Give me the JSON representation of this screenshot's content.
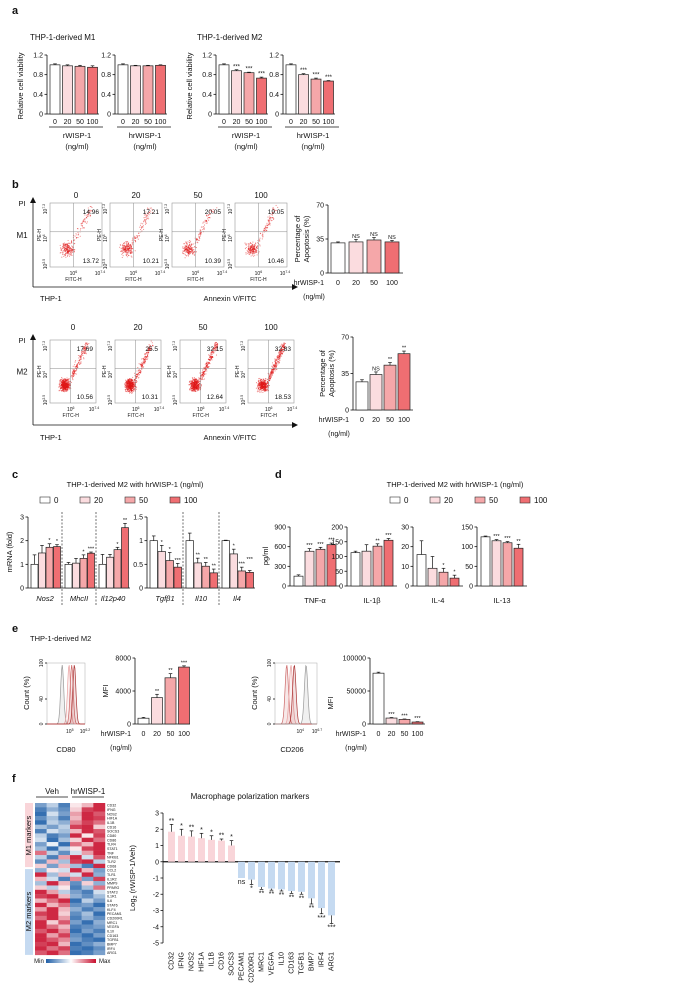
{
  "style": {
    "dose_colors": [
      "#ffffff",
      "#fbdcdf",
      "#f5a7a9",
      "#ef6e72"
    ],
    "m1_bar_color": "#f9d5d9",
    "m2_bar_color": "#c5daf1",
    "heat_low": "#1f5fa8",
    "heat_high": "#c8102e"
  },
  "panel_labels": {
    "a": "a",
    "b": "b",
    "c": "c",
    "d": "d",
    "e": "e",
    "f": "f"
  },
  "panel_a": {
    "title_m1": "THP-1-derived M1",
    "title_m2": "THP-1-derived M2",
    "ylabel": "Relative cell viability",
    "unit": "(ng/ml)"
  },
  "panel_b": {
    "pi_label": "PI",
    "rows": [
      "M1",
      "M2"
    ],
    "x_title_left": "THP-1",
    "x_title_center": "Annexin V/FITC",
    "doses": [
      "0",
      "20",
      "50",
      "100"
    ],
    "flow_axes": {
      "y_label": "PE-H",
      "x_label": "FITC-H",
      "y_ticks": [
        {
          "base": "10",
          "exp": "7.2"
        },
        {
          "base": "10",
          "exp": "4"
        },
        {
          "base": "10",
          "exp": "2.5"
        }
      ],
      "x_ticks": [
        {
          "base": "10",
          "exp": "6"
        },
        {
          "base": "10",
          "exp": "7.4"
        }
      ]
    },
    "m1_quadrants": [
      {
        "upper_right": "14.96",
        "lower_right": "13.72"
      },
      {
        "upper_right": "17.21",
        "lower_right": "10.21"
      },
      {
        "upper_right": "20.05",
        "lower_right": "10.39"
      },
      {
        "upper_right": "19.05",
        "lower_right": "10.46"
      }
    ],
    "m2_quadrants": [
      {
        "upper_right": "17.69",
        "lower_right": "10.56"
      },
      {
        "upper_right": "25.5",
        "lower_right": "10.31"
      },
      {
        "upper_right": "32.15",
        "lower_right": "12.64"
      },
      {
        "upper_right": "32.83",
        "lower_right": "18.53"
      }
    ],
    "bar_ylabel_line1": "Percentage of",
    "bar_ylabel_line2": "Apoptosis (%)",
    "unit": "(ng/ml)"
  },
  "panel_c": {
    "title": "THP-1-derived M2 with hrWISP-1 (ng/ml)",
    "legend": [
      "0",
      "20",
      "50",
      "100"
    ],
    "ylabel": "mRNA (fold)"
  },
  "panel_d": {
    "title": "THP-1-derived M2 with hrWISP-1 (ng/ml)",
    "legend": [
      "0",
      "20",
      "50",
      "100"
    ],
    "ylabel": "pg/ml"
  },
  "panel_e": {
    "title": "THP-1-derived M2",
    "hist_ylabel": "Count (%)",
    "hist_yticks": [
      "100",
      "40",
      "0"
    ],
    "cd80": {
      "label": "CD80",
      "x_ticks": [
        {
          "base": "10",
          "exp": "5"
        },
        {
          "base": "10",
          "exp": "6.2"
        }
      ]
    },
    "cd206": {
      "label": "CD206",
      "x_ticks": [
        {
          "base": "10",
          "exp": "4"
        },
        {
          "base": "10",
          "exp": "6.7"
        }
      ]
    },
    "mfi_ylabel": "MFI",
    "unit": "(ng/ml)"
  },
  "panel_f": {
    "heatmap": {
      "group_veh": "Veh",
      "group_wisp": "hrWISP-1",
      "m1_label": "M1 markers",
      "m2_label": "M2 markers",
      "min_label": "Min",
      "max_label": "Max",
      "m1_rows": 15,
      "genes": [
        "CD32",
        "IFNG",
        "NOS2",
        "HIF1A",
        "IL1B",
        "CD16",
        "SOCS3",
        "CD80",
        "CD86",
        "TLR4",
        "STAT1",
        "TNF",
        "NFKB1",
        "TLR2",
        "CD68",
        "CCL2",
        "TLR1",
        "IL1R2",
        "MMP9",
        "PPARG",
        "STAT3",
        "IL1R1",
        "IL6",
        "STAT6",
        "KLF4",
        "PECAM1",
        "CD200R1",
        "MRC1",
        "VEGFA",
        "IL10",
        "CD163",
        "TGFB1",
        "BMP7",
        "IRF4",
        "ARG1"
      ],
      "values": [
        [
          -0.6,
          -0.3,
          -0.8,
          0.1,
          0.3,
          0.9
        ],
        [
          -0.8,
          -0.5,
          -0.7,
          0.2,
          0.8,
          0.9
        ],
        [
          -0.9,
          -0.2,
          -0.6,
          0.4,
          0.9,
          0.7
        ],
        [
          -0.7,
          -0.4,
          -0.8,
          0.3,
          0.9,
          0.8
        ],
        [
          -0.9,
          -0.3,
          -0.5,
          0.5,
          0.8,
          0.6
        ],
        [
          -0.4,
          -0.6,
          -0.3,
          0.8,
          0.9,
          0.2
        ],
        [
          -0.8,
          -0.2,
          -0.4,
          0.3,
          0.9,
          0.7
        ],
        [
          -0.3,
          -0.8,
          -0.6,
          0.9,
          0.1,
          0.8
        ],
        [
          -0.2,
          -0.9,
          -0.4,
          0.2,
          0.9,
          0.6
        ],
        [
          -0.6,
          -0.1,
          -0.9,
          0.6,
          0.3,
          0.9
        ],
        [
          -0.4,
          -0.9,
          -0.3,
          0.1,
          0.8,
          0.9
        ],
        [
          0.6,
          -0.3,
          -0.7,
          -0.2,
          0.4,
          0.9
        ],
        [
          -0.3,
          -0.8,
          0.4,
          0.9,
          -0.2,
          0.7
        ],
        [
          -0.7,
          0.3,
          -0.4,
          0.8,
          0.9,
          -0.3
        ],
        [
          0.2,
          -0.6,
          0.3,
          -0.4,
          -0.8,
          0.9
        ],
        [
          -0.5,
          0.1,
          -0.2,
          0.9,
          0.3,
          -0.6
        ],
        [
          0.9,
          -0.4,
          0.3,
          -0.2,
          0.9,
          -0.5
        ],
        [
          0.3,
          -0.2,
          -0.8,
          0.5,
          -0.6,
          0.8
        ],
        [
          -0.4,
          0.9,
          0.3,
          -0.7,
          0.2,
          -0.5
        ],
        [
          0.2,
          -0.3,
          0.1,
          -0.8,
          -0.4,
          0.6
        ],
        [
          0.9,
          0.4,
          -0.3,
          -0.6,
          -0.8,
          -0.2
        ],
        [
          0.8,
          0.9,
          0.3,
          -0.5,
          -0.7,
          -0.4
        ],
        [
          0.3,
          0.6,
          0.9,
          -0.9,
          -0.3,
          -0.6
        ],
        [
          0.9,
          0.3,
          0.6,
          -0.7,
          -0.6,
          -0.9
        ],
        [
          0.4,
          0.9,
          0.3,
          -0.5,
          -0.8,
          -0.6
        ],
        [
          0.8,
          0.9,
          0.2,
          -0.7,
          -0.4,
          -0.9
        ],
        [
          0.6,
          0.9,
          0.4,
          -0.8,
          -0.5,
          -0.7
        ],
        [
          0.9,
          0.2,
          0.7,
          -0.6,
          -0.9,
          -0.5
        ],
        [
          0.9,
          0.6,
          0.3,
          -0.8,
          -0.7,
          -0.6
        ],
        [
          0.7,
          0.9,
          0.5,
          -0.9,
          -0.6,
          -0.8
        ],
        [
          0.9,
          0.4,
          0.8,
          -0.7,
          -0.9,
          -0.6
        ],
        [
          0.9,
          0.7,
          0.5,
          -0.6,
          -0.8,
          -0.9
        ],
        [
          0.8,
          0.9,
          0.3,
          -0.9,
          -0.7,
          -0.5
        ],
        [
          0.9,
          0.6,
          0.8,
          -0.8,
          -0.9,
          -0.7
        ],
        [
          0.7,
          0.9,
          0.6,
          -0.9,
          -0.8,
          -0.6
        ]
      ]
    },
    "title": "Macrophage polarization markers",
    "ylabel_main": "Log",
    "ylabel_sub": "2",
    "ylabel_rest": " (rWISP-1/Veh)"
  },
  "chart_data": [
    {
      "type": "bar",
      "categories": [
        "0",
        "20",
        "50",
        "100"
      ],
      "values": [
        1.0,
        0.98,
        0.97,
        0.95
      ],
      "errors": [
        0.02,
        0.02,
        0.02,
        0.03
      ],
      "stars": [
        "",
        "",
        "",
        ""
      ],
      "ylim": [
        0,
        1.2
      ],
      "yticks": [
        "0",
        "0.4",
        "0.8",
        "1.2"
      ],
      "xlabel": "rWISP-1"
    },
    {
      "type": "bar",
      "categories": [
        "0",
        "20",
        "50",
        "100"
      ],
      "values": [
        1.0,
        0.98,
        0.98,
        0.99
      ],
      "errors": [
        0.02,
        0.01,
        0.01,
        0.01
      ],
      "stars": [
        "",
        "",
        "",
        ""
      ],
      "ylim": [
        0,
        1.2
      ],
      "yticks": [
        "0",
        "0.4",
        "0.8",
        "1.2"
      ],
      "xlabel": "hrWISP-1"
    },
    {
      "type": "bar",
      "categories": [
        "0",
        "20",
        "50",
        "100"
      ],
      "values": [
        1.0,
        0.88,
        0.84,
        0.73
      ],
      "errors": [
        0.02,
        0.02,
        0.01,
        0.02
      ],
      "stars": [
        "",
        "***",
        "***",
        "***"
      ],
      "ylim": [
        0,
        1.2
      ],
      "yticks": [
        "0",
        "0.4",
        "0.8",
        "1.2"
      ],
      "xlabel": "rWISP-1"
    },
    {
      "type": "bar",
      "categories": [
        "0",
        "20",
        "50",
        "100"
      ],
      "values": [
        1.0,
        0.8,
        0.71,
        0.67
      ],
      "errors": [
        0.02,
        0.02,
        0.02,
        0.01
      ],
      "stars": [
        "",
        "***",
        "***",
        "***"
      ],
      "ylim": [
        0,
        1.2
      ],
      "yticks": [
        "0",
        "0.4",
        "0.8",
        "1.2"
      ],
      "xlabel": "hrWISP-1"
    },
    {
      "type": "bar",
      "categories": [
        "0",
        "20",
        "50",
        "100"
      ],
      "values": [
        31,
        32,
        34,
        32
      ],
      "errors": [
        1,
        2.5,
        2.5,
        1.5
      ],
      "stars": [
        "",
        "NS",
        "NS",
        "NS"
      ],
      "ylim": [
        0,
        70
      ],
      "yticks": [
        "0",
        "35",
        "70"
      ],
      "xlabel": "hrWISP-1"
    },
    {
      "type": "bar",
      "categories": [
        "0",
        "20",
        "50",
        "100"
      ],
      "values": [
        27,
        34,
        43,
        54
      ],
      "errors": [
        2,
        2.5,
        2.5,
        2.5
      ],
      "stars": [
        "",
        "NS",
        "**",
        "**"
      ],
      "ylim": [
        0,
        70
      ],
      "yticks": [
        "0",
        "35",
        "70"
      ],
      "xlabel": "hrWISP-1"
    },
    {
      "type": "bar",
      "ylim": [
        0,
        3
      ],
      "yticks": [
        "0",
        "1",
        "2",
        "3"
      ],
      "groups": [
        {
          "name": "Nos2",
          "values": [
            1.0,
            1.48,
            1.72,
            1.75
          ],
          "errors": [
            0.4,
            0.32,
            0.15,
            0.08
          ],
          "stars": [
            "",
            "",
            "*",
            "*"
          ]
        },
        {
          "name": "MhcII",
          "values": [
            1.0,
            1.05,
            1.25,
            1.47
          ],
          "errors": [
            0.08,
            0.2,
            0.15,
            0.05
          ],
          "stars": [
            "",
            "",
            "*",
            "***"
          ]
        },
        {
          "name": "Il12p40",
          "values": [
            1.0,
            1.3,
            1.62,
            2.55
          ],
          "errors": [
            0.42,
            0.12,
            0.1,
            0.18
          ],
          "stars": [
            "",
            "",
            "*",
            "**"
          ]
        }
      ]
    },
    {
      "type": "bar",
      "ylim": [
        0,
        1.5
      ],
      "yticks": [
        "0",
        "0.5",
        "1",
        "1.5"
      ],
      "groups": [
        {
          "name": "Tgfβ1",
          "values": [
            1.0,
            0.77,
            0.58,
            0.44
          ],
          "errors": [
            0.1,
            0.13,
            0.17,
            0.08
          ],
          "stars": [
            "",
            "*",
            "*",
            "***"
          ]
        },
        {
          "name": "Il10",
          "values": [
            1.0,
            0.53,
            0.46,
            0.32
          ],
          "errors": [
            0.16,
            0.1,
            0.08,
            0.08
          ],
          "stars": [
            "",
            "**",
            "**",
            "**"
          ]
        },
        {
          "name": "Il4",
          "values": [
            1.0,
            0.72,
            0.36,
            0.33
          ],
          "errors": [
            0.01,
            0.1,
            0.08,
            0.04
          ],
          "stars": [
            "",
            "*",
            "***",
            "***"
          ]
        }
      ]
    },
    {
      "type": "bar",
      "xlabel": "TNF-α",
      "categories": [
        "0",
        "20",
        "50",
        "100"
      ],
      "values": [
        150,
        530,
        560,
        630
      ],
      "errors": [
        20,
        40,
        30,
        25
      ],
      "stars": [
        "",
        "***",
        "***",
        "***"
      ],
      "ylim": [
        0,
        900
      ],
      "yticks": [
        "0",
        "300",
        "600",
        "900"
      ]
    },
    {
      "type": "bar",
      "xlabel": "IL-1β",
      "categories": [
        "0",
        "20",
        "50",
        "100"
      ],
      "values": [
        113,
        118,
        135,
        155
      ],
      "errors": [
        5,
        22,
        8,
        6
      ],
      "stars": [
        "",
        "",
        "**",
        "***"
      ],
      "ylim": [
        0,
        200
      ],
      "yticks": [
        "0",
        "50",
        "100",
        "150",
        "200"
      ]
    },
    {
      "type": "bar",
      "xlabel": "IL-4",
      "categories": [
        "0",
        "20",
        "50",
        "100"
      ],
      "values": [
        16,
        9,
        7,
        4
      ],
      "errors": [
        7,
        6,
        2,
        1.5
      ],
      "stars": [
        "",
        "",
        "*",
        "*"
      ],
      "ylim": [
        0,
        30
      ],
      "yticks": [
        "0",
        "10",
        "20",
        "30"
      ]
    },
    {
      "type": "bar",
      "xlabel": "IL-13",
      "categories": [
        "0",
        "20",
        "50",
        "100"
      ],
      "values": [
        125,
        115,
        110,
        96
      ],
      "errors": [
        2,
        3,
        3,
        10
      ],
      "stars": [
        "",
        "***",
        "***",
        "**"
      ],
      "ylim": [
        0,
        150
      ],
      "yticks": [
        "0",
        "50",
        "100",
        "150"
      ]
    },
    {
      "type": "bar",
      "categories": [
        "0",
        "20",
        "50",
        "100"
      ],
      "values": [
        700,
        3200,
        5600,
        6900
      ],
      "errors": [
        100,
        400,
        500,
        150
      ],
      "stars": [
        "",
        "**",
        "**",
        "***"
      ],
      "ylim": [
        0,
        8000
      ],
      "yticks": [
        "0",
        "4000",
        "8000"
      ],
      "xlabel": "hrWISP-1"
    },
    {
      "type": "bar",
      "categories": [
        "0",
        "20",
        "50",
        "100"
      ],
      "values": [
        77000,
        9000,
        7000,
        3000
      ],
      "errors": [
        1500,
        800,
        600,
        500
      ],
      "stars": [
        "",
        "***",
        "***",
        "***"
      ],
      "ylim": [
        0,
        100000
      ],
      "yticks": [
        "0",
        "50000",
        "100000"
      ],
      "xlabel": "hrWISP-1"
    },
    {
      "type": "bar",
      "categories": [
        "CD32",
        "IFNG",
        "NOS2",
        "HIF1A",
        "IL1B",
        "CD16",
        "SOCS3",
        "PECAM1",
        "CD200R1",
        "MRC1",
        "VEGFA",
        "IL10",
        "CD163",
        "TGFB1",
        "BMP7",
        "IRF4",
        "ARG1"
      ],
      "values": [
        1.85,
        1.6,
        1.55,
        1.45,
        1.35,
        1.3,
        1.0,
        -1.0,
        -1.1,
        -1.55,
        -1.65,
        -1.7,
        -1.8,
        -1.85,
        -2.25,
        -2.85,
        -3.3
      ],
      "errors": [
        0.45,
        0.4,
        0.35,
        0.3,
        0.25,
        0.1,
        0.3,
        0.0,
        0.3,
        0.15,
        0.1,
        0.1,
        0.15,
        0.15,
        0.35,
        0.35,
        0.5
      ],
      "stars": [
        "**",
        "*",
        "**",
        "*",
        "*",
        "**",
        "*",
        "ns",
        "*",
        "**",
        "**",
        "**",
        "**",
        "**",
        "**",
        "***",
        "***"
      ],
      "ylim": [
        -5,
        3
      ],
      "yticks": [
        "-5",
        "-4",
        "-3",
        "-2",
        "-1",
        "0",
        "1",
        "2",
        "3"
      ]
    }
  ]
}
